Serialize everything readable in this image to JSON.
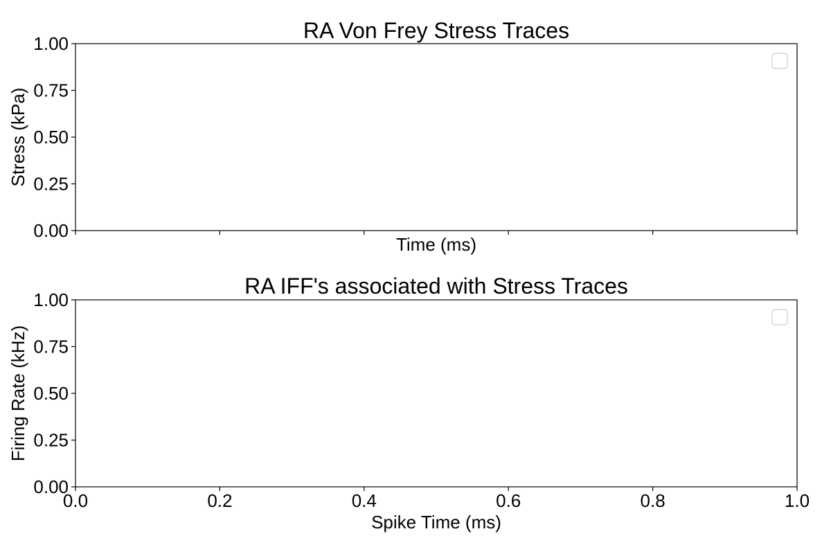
{
  "chart_data": [
    {
      "type": "line",
      "title": "RA Von Frey Stress Traces",
      "xlabel": "Time (ms)",
      "ylabel": "Stress (kPa)",
      "xlim": [
        0,
        1
      ],
      "ylim": [
        0,
        1
      ],
      "x_ticks": [
        0.0,
        0.2,
        0.4,
        0.6,
        0.8,
        1.0
      ],
      "x_tick_labels_visible": false,
      "y_ticks": [
        0.0,
        0.25,
        0.5,
        0.75,
        1.0
      ],
      "y_tick_labels": [
        "0.00",
        "0.25",
        "0.50",
        "0.75",
        "1.00"
      ],
      "series": [],
      "legend": {
        "placement": "top-right",
        "entries": []
      },
      "grid": false
    },
    {
      "type": "line",
      "title": "RA IFF's associated with Stress Traces",
      "xlabel": "Spike Time (ms)",
      "ylabel": "Firing Rate (kHz)",
      "xlim": [
        0,
        1
      ],
      "ylim": [
        0,
        1
      ],
      "x_ticks": [
        0.0,
        0.2,
        0.4,
        0.6,
        0.8,
        1.0
      ],
      "x_tick_labels": [
        "0.0",
        "0.2",
        "0.4",
        "0.6",
        "0.8",
        "1.0"
      ],
      "x_tick_labels_visible": true,
      "y_ticks": [
        0.0,
        0.25,
        0.5,
        0.75,
        1.0
      ],
      "y_tick_labels": [
        "0.00",
        "0.25",
        "0.50",
        "0.75",
        "1.00"
      ],
      "series": [],
      "legend": {
        "placement": "top-right",
        "entries": []
      },
      "grid": false
    }
  ]
}
